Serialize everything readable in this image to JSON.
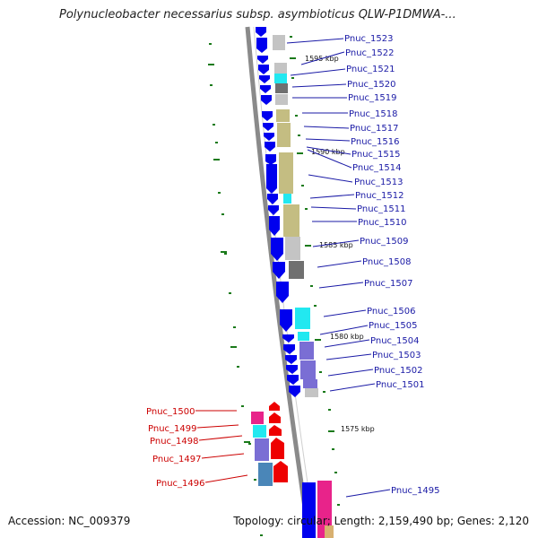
{
  "title": "Polynucleobacter necessarius subsp. asymbioticus QLW-P1DMWA-...",
  "accession": "Accession: NC_009379",
  "summary": "Topology: circular; Length: 2,159,490 bp; Genes: 2,120",
  "colors": {
    "plus_strand_gene": "#0000ee",
    "minus_strand_gene": "#ee0000",
    "label_plus": "#1a1aa6",
    "label_minus": "#cc0000",
    "backbone": "#8a8a8a",
    "tick": "#1a7a1a"
  },
  "scale_markers": [
    "1595 kbp",
    "1590 kbp",
    "1585 kbp",
    "1580 kbp",
    "1575 kbp"
  ],
  "genes_plus": [
    "Pnuc_1523",
    "Pnuc_1522",
    "Pnuc_1521",
    "Pnuc_1520",
    "Pnuc_1519",
    "Pnuc_1518",
    "Pnuc_1517",
    "Pnuc_1516",
    "Pnuc_1515",
    "Pnuc_1514",
    "Pnuc_1513",
    "Pnuc_1512",
    "Pnuc_1511",
    "Pnuc_1510",
    "Pnuc_1509",
    "Pnuc_1508",
    "Pnuc_1507",
    "Pnuc_1506",
    "Pnuc_1505",
    "Pnuc_1504",
    "Pnuc_1503",
    "Pnuc_1502",
    "Pnuc_1501",
    "Pnuc_1495"
  ],
  "genes_minus": [
    "Pnuc_1500",
    "Pnuc_1499",
    "Pnuc_1498",
    "Pnuc_1497",
    "Pnuc_1496"
  ]
}
